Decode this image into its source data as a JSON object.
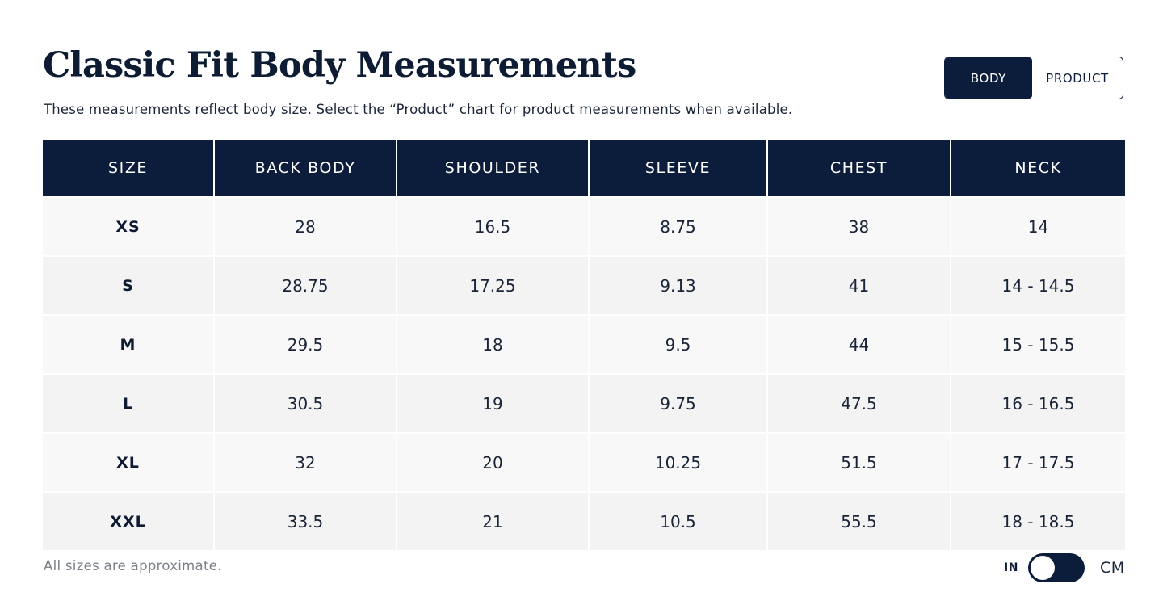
{
  "header": {
    "title": "Classic Fit Body Measurements",
    "subtitle": "These measurements reflect body size. Select the “Product” chart for product measurements when available."
  },
  "chart_toggle": {
    "options": [
      "BODY",
      "PRODUCT"
    ],
    "selected": "BODY"
  },
  "table": {
    "columns": [
      "SIZE",
      "BACK BODY",
      "SHOULDER",
      "SLEEVE",
      "CHEST",
      "NECK"
    ],
    "rows": [
      [
        "XS",
        "28",
        "16.5",
        "8.75",
        "38",
        "14"
      ],
      [
        "S",
        "28.75",
        "17.25",
        "9.13",
        "41",
        "14 - 14.5"
      ],
      [
        "M",
        "29.5",
        "18",
        "9.5",
        "44",
        "15 - 15.5"
      ],
      [
        "L",
        "30.5",
        "19",
        "9.75",
        "47.5",
        "16 - 16.5"
      ],
      [
        "XL",
        "32",
        "20",
        "10.25",
        "51.5",
        "17 - 17.5"
      ],
      [
        "XXL",
        "33.5",
        "21",
        "10.5",
        "55.5",
        "18 - 18.5"
      ]
    ]
  },
  "footer": {
    "note": "All sizes are approximate.",
    "unit_toggle": {
      "left_label": "IN",
      "right_label": "CM",
      "selected": "IN"
    }
  },
  "colors": {
    "navy": "#0b1d3a",
    "row_odd": "#f8f8f8",
    "row_even": "#f3f3f3",
    "muted_text": "#7a7f88"
  }
}
